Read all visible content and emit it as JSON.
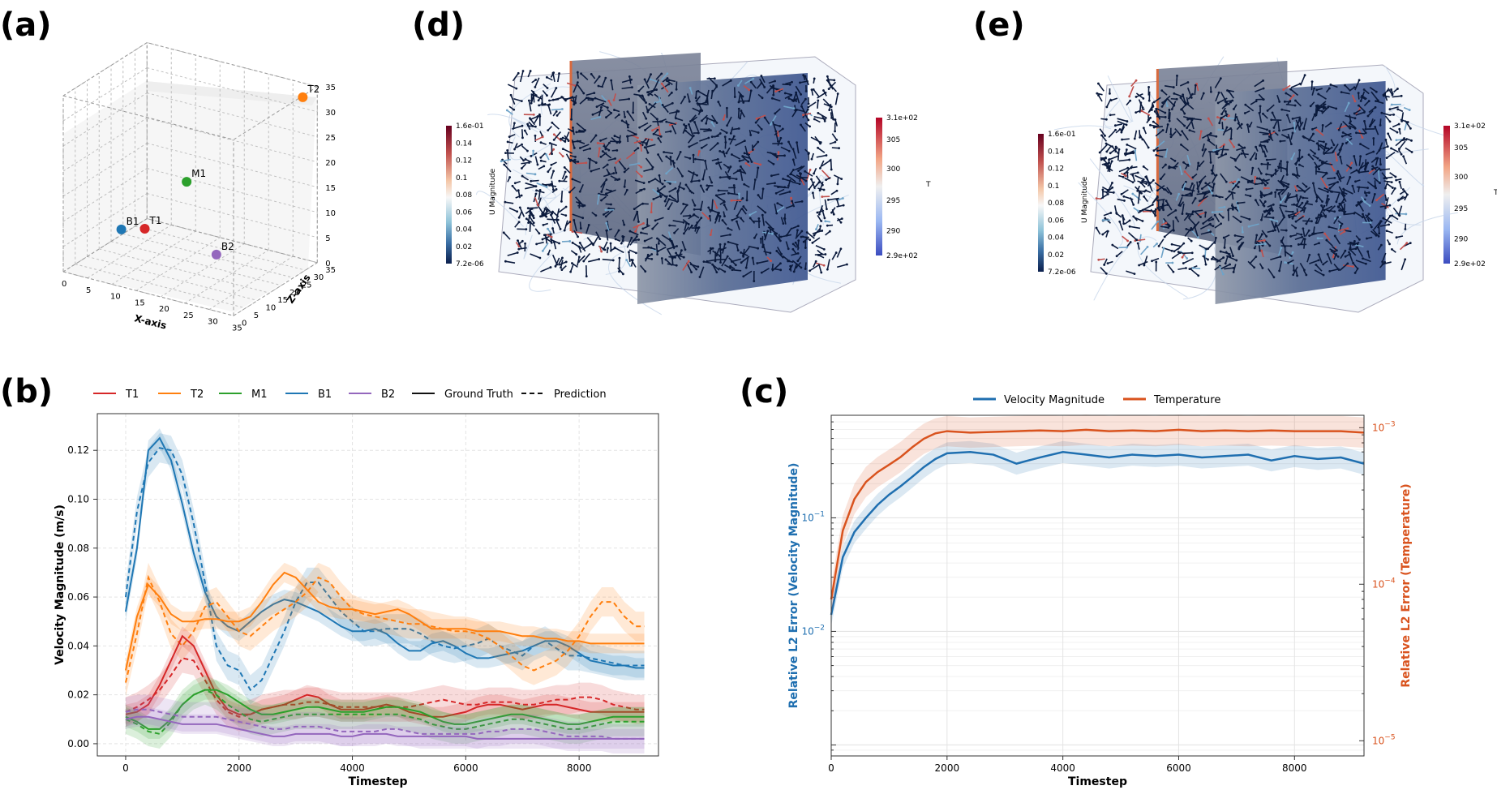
{
  "panels": {
    "a": "(a)",
    "b": "(b)",
    "c": "(c)",
    "d": "(d)",
    "e": "(e)"
  },
  "colors": {
    "T1": "#d62728",
    "T2": "#ff7f0e",
    "M1": "#2ca02c",
    "B1": "#1f77b4",
    "B2": "#9467bd",
    "vel": "#1f6fb0",
    "temp": "#d9531e"
  },
  "chart_data": [
    {
      "id": "a",
      "type": "scatter",
      "title": "",
      "xlabel": "X-axis",
      "zlabel": "Z-axis",
      "x_ticks": [
        "0",
        "5",
        "10",
        "15",
        "20",
        "25",
        "30",
        "35"
      ],
      "z_ticks": [
        "0",
        "5",
        "10",
        "15",
        "20",
        "25",
        "30",
        "35"
      ],
      "y_ticks": [
        "0",
        "5",
        "10",
        "15",
        "20",
        "25",
        "30",
        "35"
      ],
      "points": [
        {
          "name": "T1",
          "x": 2,
          "y": 30,
          "z": 0,
          "label": "T1"
        },
        {
          "name": "T2",
          "x": 33,
          "y": 33,
          "z": 33,
          "label": "T2"
        },
        {
          "name": "M1",
          "x": 17,
          "y": 17,
          "z": 17,
          "label": "M1"
        },
        {
          "name": "B1",
          "x": 8,
          "y": 8,
          "z": 8,
          "label": "B1"
        },
        {
          "name": "B2",
          "x": 30,
          "y": 3,
          "z": 10,
          "label": "B2"
        }
      ]
    },
    {
      "id": "b",
      "type": "line",
      "xlabel": "Timestep",
      "ylabel": "Velocity Magnitude (m/s)",
      "xlim": [
        -500,
        9400
      ],
      "ylim": [
        -0.005,
        0.135
      ],
      "x_ticks": [
        0,
        2000,
        4000,
        6000,
        8000
      ],
      "y_ticks": [
        "0.00",
        "0.02",
        "0.04",
        "0.06",
        "0.08",
        "0.10",
        "0.12"
      ],
      "legend": {
        "placement": "top",
        "entries": [
          "T1",
          "T2",
          "M1",
          "B1",
          "B2",
          "Ground Truth",
          "Prediction"
        ]
      },
      "x": [
        0,
        200,
        400,
        600,
        800,
        1000,
        1200,
        1400,
        1600,
        1800,
        2000,
        2200,
        2400,
        2600,
        2800,
        3000,
        3200,
        3400,
        3600,
        3800,
        4000,
        4200,
        4400,
        4600,
        4800,
        5000,
        5200,
        5400,
        5600,
        5800,
        6000,
        6200,
        6400,
        6600,
        6800,
        7000,
        7200,
        7400,
        7600,
        7800,
        8000,
        8200,
        8400,
        8600,
        8800,
        9000,
        9150
      ],
      "series": [
        {
          "name": "B1",
          "kind": "truth",
          "values": [
            0.054,
            0.08,
            0.12,
            0.125,
            0.116,
            0.098,
            0.078,
            0.062,
            0.052,
            0.048,
            0.046,
            0.05,
            0.054,
            0.057,
            0.059,
            0.058,
            0.056,
            0.054,
            0.051,
            0.048,
            0.046,
            0.046,
            0.047,
            0.045,
            0.041,
            0.038,
            0.038,
            0.041,
            0.042,
            0.04,
            0.037,
            0.035,
            0.035,
            0.036,
            0.037,
            0.038,
            0.04,
            0.042,
            0.042,
            0.04,
            0.037,
            0.034,
            0.033,
            0.032,
            0.032,
            0.031,
            0.031
          ]
        },
        {
          "name": "B1",
          "kind": "pred",
          "values": [
            0.06,
            0.095,
            0.115,
            0.121,
            0.12,
            0.11,
            0.09,
            0.066,
            0.04,
            0.032,
            0.03,
            0.022,
            0.026,
            0.036,
            0.046,
            0.058,
            0.066,
            0.066,
            0.06,
            0.054,
            0.05,
            0.046,
            0.046,
            0.047,
            0.047,
            0.047,
            0.045,
            0.042,
            0.04,
            0.039,
            0.04,
            0.041,
            0.043,
            0.04,
            0.038,
            0.036,
            0.04,
            0.042,
            0.039,
            0.036,
            0.036,
            0.035,
            0.034,
            0.033,
            0.032,
            0.032,
            0.032
          ]
        },
        {
          "name": "T2",
          "kind": "truth",
          "values": [
            0.03,
            0.052,
            0.065,
            0.06,
            0.053,
            0.05,
            0.05,
            0.051,
            0.051,
            0.05,
            0.05,
            0.052,
            0.058,
            0.065,
            0.07,
            0.068,
            0.063,
            0.058,
            0.056,
            0.055,
            0.055,
            0.054,
            0.053,
            0.054,
            0.055,
            0.053,
            0.05,
            0.047,
            0.047,
            0.047,
            0.047,
            0.046,
            0.046,
            0.046,
            0.045,
            0.044,
            0.044,
            0.043,
            0.043,
            0.042,
            0.042,
            0.041,
            0.041,
            0.041,
            0.041,
            0.041,
            0.041
          ]
        },
        {
          "name": "T2",
          "kind": "pred",
          "values": [
            0.025,
            0.045,
            0.068,
            0.058,
            0.045,
            0.04,
            0.046,
            0.056,
            0.058,
            0.052,
            0.046,
            0.044,
            0.048,
            0.052,
            0.055,
            0.058,
            0.062,
            0.068,
            0.066,
            0.06,
            0.055,
            0.053,
            0.052,
            0.051,
            0.05,
            0.049,
            0.049,
            0.048,
            0.047,
            0.046,
            0.046,
            0.045,
            0.043,
            0.04,
            0.036,
            0.032,
            0.03,
            0.032,
            0.034,
            0.038,
            0.044,
            0.052,
            0.058,
            0.058,
            0.052,
            0.048,
            0.048
          ]
        },
        {
          "name": "T1",
          "kind": "truth",
          "values": [
            0.012,
            0.013,
            0.016,
            0.024,
            0.034,
            0.044,
            0.04,
            0.03,
            0.02,
            0.014,
            0.012,
            0.012,
            0.014,
            0.015,
            0.016,
            0.018,
            0.02,
            0.019,
            0.016,
            0.014,
            0.014,
            0.014,
            0.015,
            0.016,
            0.015,
            0.013,
            0.012,
            0.011,
            0.011,
            0.012,
            0.013,
            0.015,
            0.016,
            0.016,
            0.015,
            0.014,
            0.015,
            0.016,
            0.016,
            0.015,
            0.014,
            0.013,
            0.013,
            0.013,
            0.013,
            0.013,
            0.013
          ]
        },
        {
          "name": "T1",
          "kind": "pred",
          "values": [
            0.013,
            0.015,
            0.018,
            0.022,
            0.028,
            0.035,
            0.034,
            0.026,
            0.018,
            0.013,
            0.011,
            0.012,
            0.014,
            0.015,
            0.016,
            0.016,
            0.017,
            0.017,
            0.016,
            0.015,
            0.015,
            0.015,
            0.015,
            0.015,
            0.015,
            0.015,
            0.016,
            0.017,
            0.018,
            0.017,
            0.016,
            0.016,
            0.017,
            0.017,
            0.017,
            0.016,
            0.016,
            0.017,
            0.018,
            0.018,
            0.019,
            0.019,
            0.018,
            0.016,
            0.015,
            0.014,
            0.014
          ]
        },
        {
          "name": "M1",
          "kind": "truth",
          "values": [
            0.011,
            0.009,
            0.006,
            0.006,
            0.01,
            0.016,
            0.02,
            0.022,
            0.022,
            0.02,
            0.017,
            0.014,
            0.012,
            0.012,
            0.013,
            0.014,
            0.015,
            0.015,
            0.014,
            0.013,
            0.013,
            0.013,
            0.014,
            0.015,
            0.015,
            0.014,
            0.013,
            0.011,
            0.009,
            0.008,
            0.008,
            0.009,
            0.01,
            0.011,
            0.012,
            0.012,
            0.011,
            0.01,
            0.009,
            0.008,
            0.008,
            0.009,
            0.01,
            0.011,
            0.011,
            0.011,
            0.011
          ]
        },
        {
          "name": "M1",
          "kind": "pred",
          "values": [
            0.01,
            0.008,
            0.005,
            0.004,
            0.009,
            0.016,
            0.02,
            0.022,
            0.02,
            0.016,
            0.013,
            0.01,
            0.009,
            0.01,
            0.011,
            0.012,
            0.012,
            0.012,
            0.012,
            0.012,
            0.012,
            0.012,
            0.012,
            0.012,
            0.012,
            0.011,
            0.01,
            0.008,
            0.007,
            0.006,
            0.006,
            0.007,
            0.008,
            0.009,
            0.01,
            0.01,
            0.009,
            0.008,
            0.007,
            0.006,
            0.006,
            0.007,
            0.008,
            0.009,
            0.009,
            0.009,
            0.009
          ]
        },
        {
          "name": "B2",
          "kind": "truth",
          "values": [
            0.01,
            0.011,
            0.011,
            0.01,
            0.009,
            0.008,
            0.008,
            0.008,
            0.008,
            0.007,
            0.006,
            0.005,
            0.004,
            0.003,
            0.003,
            0.004,
            0.004,
            0.004,
            0.004,
            0.003,
            0.003,
            0.004,
            0.004,
            0.004,
            0.003,
            0.003,
            0.003,
            0.003,
            0.003,
            0.003,
            0.003,
            0.002,
            0.002,
            0.002,
            0.002,
            0.002,
            0.002,
            0.002,
            0.002,
            0.002,
            0.002,
            0.002,
            0.002,
            0.002,
            0.002,
            0.002,
            0.002
          ]
        },
        {
          "name": "B2",
          "kind": "pred",
          "values": [
            0.013,
            0.014,
            0.014,
            0.013,
            0.012,
            0.011,
            0.011,
            0.011,
            0.011,
            0.01,
            0.009,
            0.008,
            0.007,
            0.006,
            0.006,
            0.007,
            0.007,
            0.007,
            0.006,
            0.005,
            0.005,
            0.005,
            0.005,
            0.006,
            0.006,
            0.005,
            0.004,
            0.004,
            0.004,
            0.004,
            0.004,
            0.004,
            0.005,
            0.005,
            0.006,
            0.006,
            0.006,
            0.005,
            0.004,
            0.003,
            0.003,
            0.003,
            0.003,
            0.002,
            0.002,
            0.002,
            0.002
          ]
        }
      ]
    },
    {
      "id": "c",
      "type": "line",
      "xlabel": "Timestep",
      "ylabel_left": "Relative L2 Error (Velocity Magnitude)",
      "ylabel_right": "Relative L2 Error (Temperature)",
      "yscale": "log",
      "xlim": [
        0,
        9200
      ],
      "ylim_left": [
        0.0008,
        0.8
      ],
      "ylim_right": [
        8e-06,
        0.0012
      ],
      "x_ticks": [
        0,
        2000,
        4000,
        6000,
        8000
      ],
      "y_ticks_left": [
        {
          "v": 0.1,
          "base": "10",
          "exp": "−1"
        },
        {
          "v": 0.01,
          "base": "10",
          "exp": "−2"
        }
      ],
      "y_ticks_right": [
        {
          "v": 0.001,
          "base": "10",
          "exp": "−3"
        },
        {
          "v": 0.0001,
          "base": "10",
          "exp": "−4"
        },
        {
          "v": 1e-05,
          "base": "10",
          "exp": "−5"
        }
      ],
      "legend": {
        "placement": "top",
        "entries": [
          "Velocity Magnitude",
          "Temperature"
        ]
      },
      "x": [
        0,
        200,
        400,
        600,
        800,
        1000,
        1200,
        1400,
        1600,
        1800,
        2000,
        2400,
        2800,
        3200,
        3600,
        4000,
        4400,
        4800,
        5200,
        5600,
        6000,
        6400,
        6800,
        7200,
        7600,
        8000,
        8400,
        8800,
        9200
      ],
      "series": [
        {
          "name": "Velocity Magnitude",
          "axis": "left",
          "values": [
            0.014,
            0.045,
            0.075,
            0.1,
            0.13,
            0.16,
            0.19,
            0.23,
            0.28,
            0.33,
            0.37,
            0.38,
            0.36,
            0.3,
            0.34,
            0.38,
            0.36,
            0.34,
            0.36,
            0.35,
            0.36,
            0.34,
            0.35,
            0.36,
            0.32,
            0.35,
            0.33,
            0.34,
            0.3
          ]
        },
        {
          "name": "Temperature",
          "axis": "right",
          "values": [
            8e-05,
            0.00022,
            0.00035,
            0.00045,
            0.00052,
            0.00058,
            0.00065,
            0.00075,
            0.00085,
            0.00092,
            0.00095,
            0.00093,
            0.00094,
            0.00095,
            0.00096,
            0.00095,
            0.00097,
            0.00095,
            0.00096,
            0.00095,
            0.00097,
            0.00095,
            0.00096,
            0.00095,
            0.00096,
            0.00095,
            0.00095,
            0.00095,
            0.00093
          ]
        }
      ]
    }
  ],
  "vis_d": {
    "colorbar_left": {
      "title": "U Magnitude",
      "ticks": [
        "1.6e-01",
        "0.14",
        "0.12",
        "0.1",
        "0.08",
        "0.06",
        "0.04",
        "0.02",
        "7.2e-06"
      ]
    },
    "colorbar_right": {
      "title": "T",
      "ticks": [
        "3.1e+02",
        "305",
        "300",
        "295",
        "290",
        "2.9e+02"
      ]
    }
  },
  "vis_e": {
    "colorbar_left": {
      "title": "U Magnitude",
      "ticks": [
        "1.6e-01",
        "0.14",
        "0.12",
        "0.1",
        "0.08",
        "0.06",
        "0.04",
        "0.02",
        "7.2e-06"
      ]
    },
    "colorbar_right": {
      "title": "T",
      "ticks": [
        "3.1e+02",
        "305",
        "300",
        "295",
        "290",
        "2.9e+02"
      ]
    }
  }
}
